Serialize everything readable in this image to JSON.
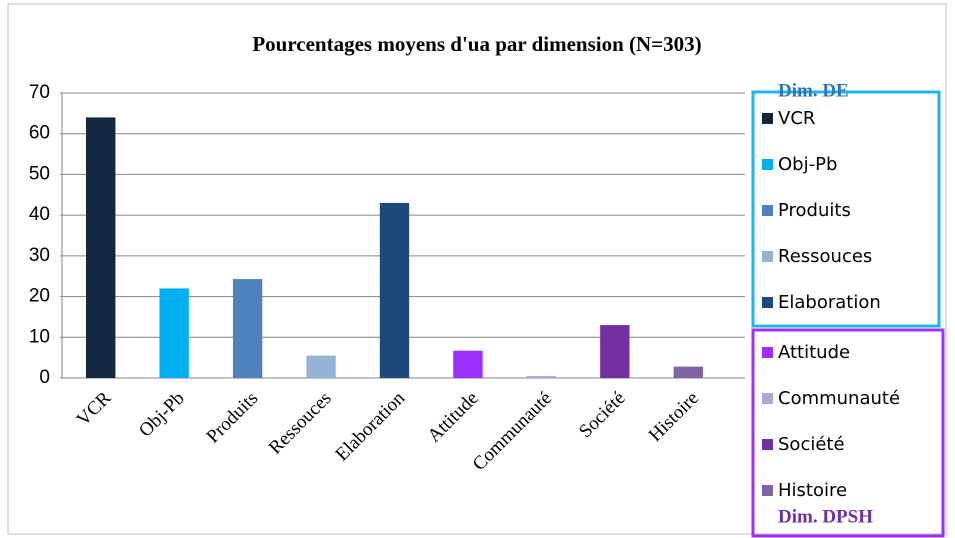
{
  "chart_data": {
    "type": "bar",
    "title": "Pourcentages  moyens d'ua par dimension (N=303)",
    "categories": [
      "VCR",
      "Obj-Pb",
      "Produits",
      "Ressouces",
      "Elaboration",
      "Attitude",
      "Communauté",
      "Société",
      "Histoire"
    ],
    "values": [
      64,
      22,
      24.3,
      5.5,
      43,
      6.7,
      0.5,
      13,
      2.8
    ],
    "colors": [
      "#12263f",
      "#00b0f0",
      "#4f81bd",
      "#95b3d7",
      "#1f497d",
      "#9b30ff",
      "#b4a7d6",
      "#7030a0",
      "#8064a2"
    ],
    "ylim": [
      0,
      70
    ],
    "yticks": [
      0,
      10,
      20,
      30,
      40,
      50,
      60,
      70
    ],
    "grid": true,
    "annotations": [
      "Dim. DE",
      "Dim. DPSH"
    ]
  }
}
